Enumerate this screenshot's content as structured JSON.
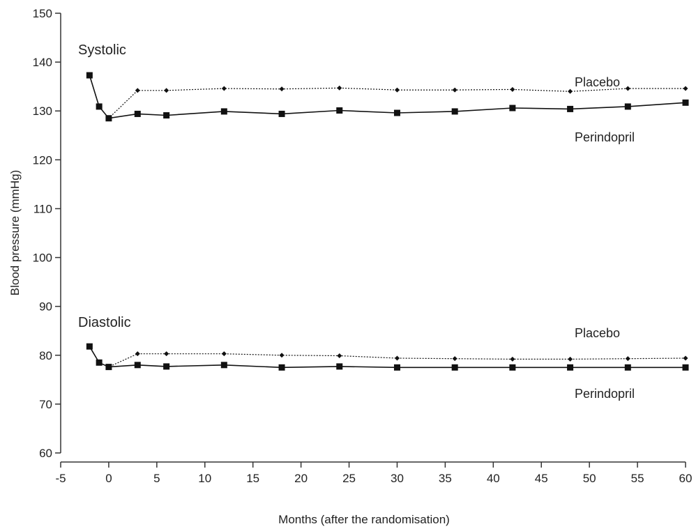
{
  "chart_data": {
    "type": "line",
    "title": "",
    "xlabel": "Months (after the randomisation)",
    "ylabel": "Blood pressure (mmHg)",
    "xlim": [
      -5,
      60
    ],
    "ylim": [
      60,
      150
    ],
    "xticks": [
      -5,
      0,
      5,
      10,
      15,
      20,
      25,
      30,
      35,
      40,
      45,
      50,
      55,
      60
    ],
    "yticks": [
      60,
      70,
      80,
      90,
      100,
      110,
      120,
      130,
      140,
      150
    ],
    "grid": false,
    "legend": "none",
    "group_labels": [
      "Systolic",
      "Diastolic"
    ],
    "annotations": [
      "Placebo",
      "Perindopril",
      "Placebo",
      "Perindopril"
    ],
    "series": [
      {
        "group": "Systolic",
        "label": "Placebo",
        "style": "dotted",
        "marker": "diamond",
        "x": [
          -2,
          -1,
          0,
          3,
          6,
          12,
          18,
          24,
          30,
          36,
          42,
          48,
          54,
          60
        ],
        "y": [
          137.3,
          130.9,
          128.5,
          134.2,
          134.2,
          134.6,
          134.5,
          134.7,
          134.3,
          134.3,
          134.4,
          134.0,
          134.6,
          134.6
        ]
      },
      {
        "group": "Systolic",
        "label": "Perindopril",
        "style": "solid",
        "marker": "square",
        "x": [
          -2,
          -1,
          0,
          3,
          6,
          12,
          18,
          24,
          30,
          36,
          42,
          48,
          54,
          60
        ],
        "y": [
          137.3,
          130.9,
          128.5,
          129.4,
          129.1,
          129.9,
          129.4,
          130.1,
          129.6,
          129.9,
          130.6,
          130.4,
          130.9,
          131.7
        ]
      },
      {
        "group": "Diastolic",
        "label": "Placebo",
        "style": "dotted",
        "marker": "diamond",
        "x": [
          -2,
          -1,
          0,
          3,
          6,
          12,
          18,
          24,
          30,
          36,
          42,
          48,
          54,
          60
        ],
        "y": [
          81.8,
          78.5,
          77.6,
          80.3,
          80.3,
          80.3,
          80.0,
          79.9,
          79.4,
          79.3,
          79.2,
          79.2,
          79.3,
          79.4
        ]
      },
      {
        "group": "Diastolic",
        "label": "Perindopril",
        "style": "solid",
        "marker": "square",
        "x": [
          -2,
          -1,
          0,
          3,
          6,
          12,
          18,
          24,
          30,
          36,
          42,
          48,
          54,
          60
        ],
        "y": [
          81.8,
          78.5,
          77.6,
          78.0,
          77.7,
          78.0,
          77.5,
          77.7,
          77.5,
          77.5,
          77.5,
          77.5,
          77.5,
          77.5
        ]
      }
    ],
    "colors": {
      "line": "#111111",
      "axis": "#333333",
      "text": "#222222"
    }
  }
}
